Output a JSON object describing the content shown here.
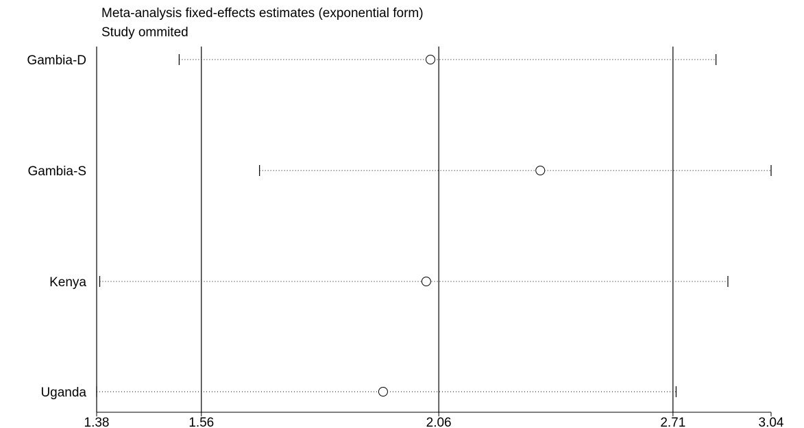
{
  "chart_data": {
    "type": "forest",
    "title": "Meta-analysis fixed-effects estimates (exponential form)",
    "subtitle": "Study ommited",
    "scale": "log",
    "xlim": [
      1.38,
      3.04
    ],
    "reference_lines": [
      1.56,
      2.06,
      2.71
    ],
    "x_ticks": [
      {
        "value": 1.38,
        "label": "1.38"
      },
      {
        "value": 1.56,
        "label": "1.56"
      },
      {
        "value": 2.06,
        "label": "2.06"
      },
      {
        "value": 2.71,
        "label": "2.71"
      },
      {
        "value": 3.04,
        "label": "3.04"
      }
    ],
    "studies": [
      {
        "label": "Gambia-D",
        "estimate": 2.04,
        "ci_lower": 1.52,
        "ci_upper": 2.85
      },
      {
        "label": "Gambia-S",
        "estimate": 2.32,
        "ci_lower": 1.67,
        "ci_upper": 3.04
      },
      {
        "label": "Kenya",
        "estimate": 2.03,
        "ci_lower": 1.385,
        "ci_upper": 2.89
      },
      {
        "label": "Uganda",
        "estimate": 1.93,
        "ci_lower": 1.38,
        "ci_upper": 2.72
      }
    ]
  }
}
